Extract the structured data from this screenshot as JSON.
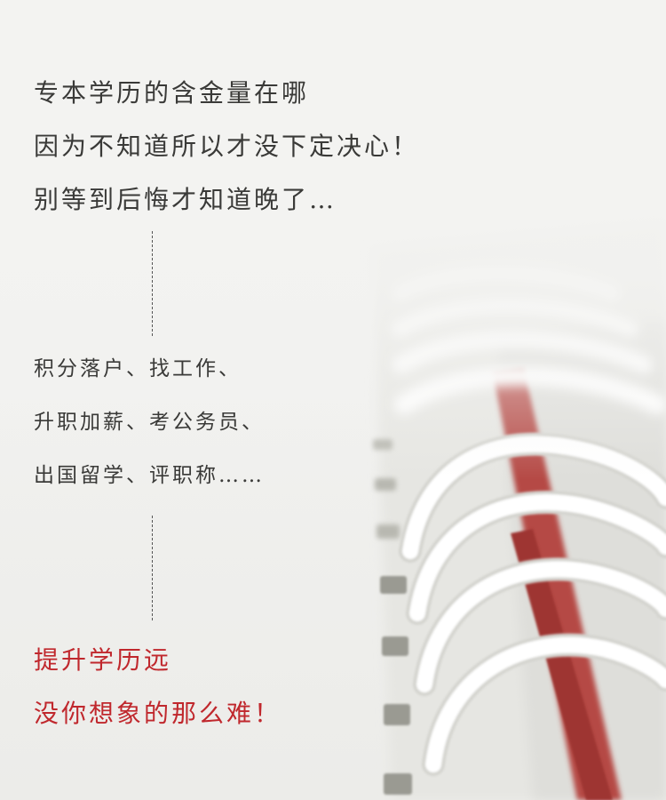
{
  "headline": {
    "line1": "专本学历的含金量在哪",
    "line2": "因为不知道所以才没下定决心！",
    "line3": "别等到后悔才知道晚了…"
  },
  "benefits": {
    "line1": "积分落户、找工作、",
    "line2": "升职加薪、考公务员、",
    "line3": "出国留学、评职称……"
  },
  "call_to_action": {
    "line1": "提升学历远",
    "line2": "没你想象的那么难！"
  },
  "colors": {
    "text": "#3a3a38",
    "accent": "#c0282d",
    "background": "#f2f2f0"
  }
}
